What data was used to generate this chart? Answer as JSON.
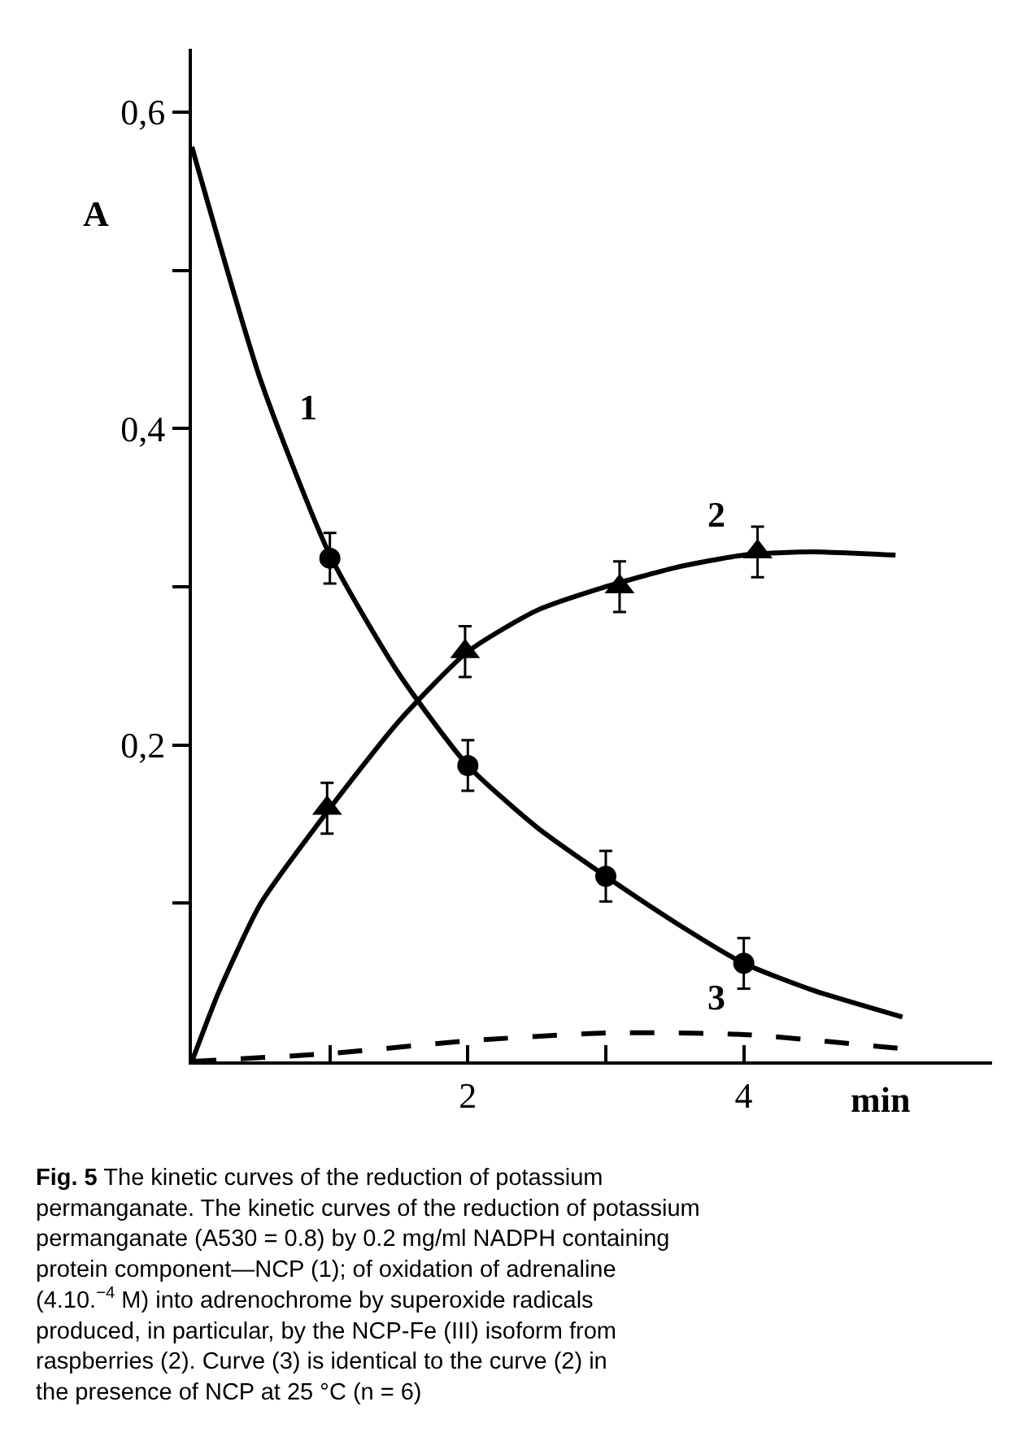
{
  "chart_data": {
    "type": "line",
    "xlabel": "min",
    "ylabel": "A",
    "xlim": [
      0,
      5.8
    ],
    "ylim": [
      0,
      0.64
    ],
    "xticks": [
      {
        "value": 1,
        "label": null
      },
      {
        "value": 2,
        "label": "2"
      },
      {
        "value": 3,
        "label": null
      },
      {
        "value": 4,
        "label": "4"
      }
    ],
    "yticks": [
      {
        "value": 0.1,
        "label": null
      },
      {
        "value": 0.2,
        "label": "0,2"
      },
      {
        "value": 0.3,
        "label": null
      },
      {
        "value": 0.4,
        "label": "0,4"
      },
      {
        "value": 0.5,
        "label": null
      },
      {
        "value": 0.6,
        "label": "0,6"
      }
    ],
    "series": [
      {
        "color": "#000000",
        "line_style": "solid",
        "marker": "none",
        "x": [
          0,
          0.5,
          1,
          1.5,
          2,
          2.5,
          3,
          3.5,
          4,
          4.5,
          5.15
        ],
        "values": [
          0.578,
          0.43,
          0.32,
          0.245,
          0.187,
          0.148,
          0.117,
          0.088,
          0.062,
          0.045,
          0.028
        ]
      },
      {
        "color": "#000000",
        "line_style": "solid",
        "marker": "none",
        "x": [
          0,
          0.2,
          0.5,
          1,
          1.5,
          2,
          2.5,
          3,
          3.5,
          4,
          4.5,
          5.1
        ],
        "values": [
          0,
          0.045,
          0.1,
          0.16,
          0.215,
          0.259,
          0.285,
          0.3,
          0.312,
          0.32,
          0.322,
          0.32
        ]
      },
      {
        "color": "#000000",
        "line_style": "dashed",
        "marker": "none",
        "x": [
          0,
          1,
          2,
          3,
          4,
          5.15
        ],
        "values": [
          0,
          0.005,
          0.013,
          0.018,
          0.017,
          0.008
        ]
      },
      {
        "type": "scatter",
        "color": "#000000",
        "marker": "circle",
        "x": [
          1,
          2,
          3,
          4
        ],
        "values": [
          0.318,
          0.187,
          0.117,
          0.062
        ],
        "errors": [
          0.016,
          0.016,
          0.016,
          0.016
        ]
      },
      {
        "type": "scatter",
        "color": "#000000",
        "marker": "triangle",
        "x": [
          0.98,
          1.98,
          3.1,
          4.1
        ],
        "values": [
          0.16,
          0.259,
          0.3,
          0.322
        ],
        "errors": [
          0.016,
          0.016,
          0.016,
          0.016
        ]
      }
    ],
    "annotations": [
      "1",
      "2",
      "3",
      "Fig. 5 The kinetic curves of the reduction of potassium permanganate. The kinetic curves of the reduction of potassium permanganate (A530 = 0.8) by 0.2 mg/ml NADPH containing protein component—NCP (1); of oxidation of adrenaline (4.10.$^{−4}$ M) into adrenochrome by superoxide radicals produced, in particular, by the NCP-Fe (III) isoform from raspberries (2). Curve (3) is identical to the curve (2) in the presence of NCP at 25 °C (n = 6)"
    ]
  }
}
